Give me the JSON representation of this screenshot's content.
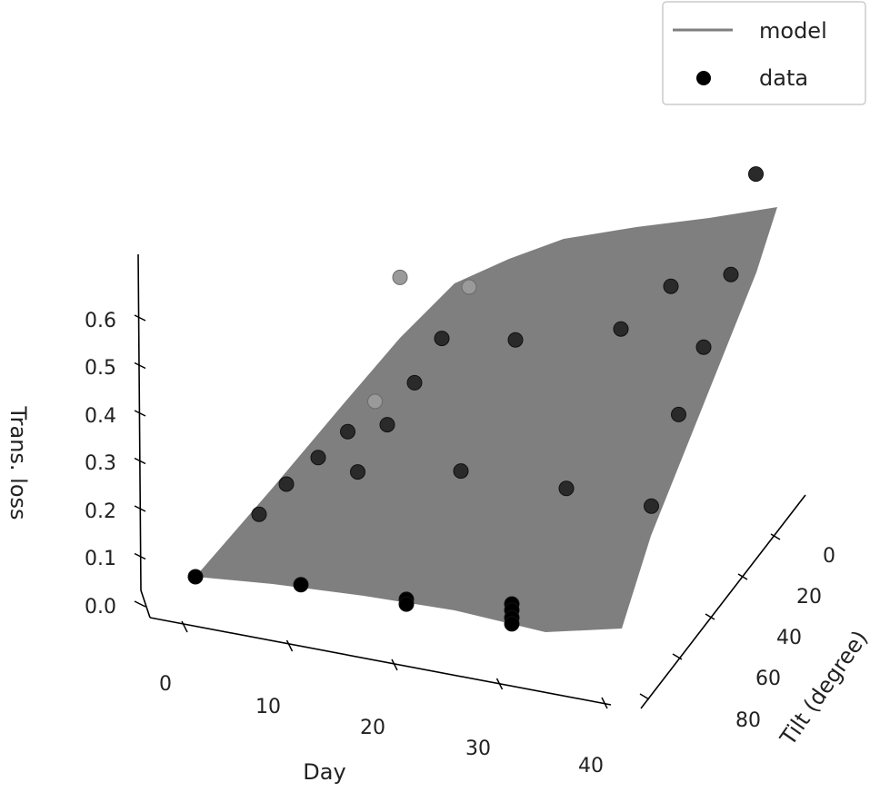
{
  "chart_data": {
    "type": "scatter",
    "subtype": "3d-surface-with-scatter",
    "title": "",
    "xlabel": "Day",
    "ylabel": "Tilt (degree)",
    "zlabel": "Trans. loss",
    "xlim": [
      0,
      40
    ],
    "ylim": [
      0,
      90
    ],
    "zlim": [
      0,
      0.7
    ],
    "x_ticks": [
      "0",
      "10",
      "20",
      "30",
      "40"
    ],
    "y_ticks": [
      "0",
      "20",
      "40",
      "60",
      "80"
    ],
    "z_ticks": [
      "0.0",
      "0.1",
      "0.2",
      "0.3",
      "0.4",
      "0.5",
      "0.6"
    ],
    "legend": {
      "placement": "top-right",
      "entries": [
        {
          "label": "model",
          "kind": "line",
          "color": "#7f7f7f"
        },
        {
          "label": "data",
          "kind": "marker",
          "color": "#000000"
        }
      ]
    },
    "surface_color": "#7f7f7f",
    "points": [
      {
        "day": 0,
        "tilt": 90,
        "loss": 0.05
      },
      {
        "day": 0,
        "tilt": 62,
        "loss": 0.15
      },
      {
        "day": 0,
        "tilt": 50,
        "loss": 0.2
      },
      {
        "day": 0,
        "tilt": 36,
        "loss": 0.24
      },
      {
        "day": 0,
        "tilt": 23,
        "loss": 0.28
      },
      {
        "day": 0,
        "tilt": 11,
        "loss": 0.33
      },
      {
        "day": 0,
        "tilt": 0,
        "loss": 0.58
      },
      {
        "day": 10,
        "tilt": 90,
        "loss": 0.06
      },
      {
        "day": 10,
        "tilt": 65,
        "loss": 0.27
      },
      {
        "day": 10,
        "tilt": 52,
        "loss": 0.355
      },
      {
        "day": 10,
        "tilt": 40,
        "loss": 0.43
      },
      {
        "day": 10,
        "tilt": 28,
        "loss": 0.51
      },
      {
        "day": 10,
        "tilt": 16,
        "loss": 0.605
      },
      {
        "day": 20,
        "tilt": 90,
        "loss": 0.056
      },
      {
        "day": 20,
        "tilt": 90,
        "loss": 0.046
      },
      {
        "day": 20,
        "tilt": 66,
        "loss": 0.3
      },
      {
        "day": 20,
        "tilt": 42,
        "loss": 0.55
      },
      {
        "day": 30,
        "tilt": 90,
        "loss": 0.073
      },
      {
        "day": 30,
        "tilt": 90,
        "loss": 0.06
      },
      {
        "day": 30,
        "tilt": 90,
        "loss": 0.044
      },
      {
        "day": 30,
        "tilt": 90,
        "loss": 0.031
      },
      {
        "day": 30,
        "tilt": 66,
        "loss": 0.29
      },
      {
        "day": 30,
        "tilt": 42,
        "loss": 0.6
      },
      {
        "day": 30,
        "tilt": 20,
        "loss": 0.665
      },
      {
        "day": 40,
        "tilt": 75,
        "loss": 0.29
      },
      {
        "day": 40,
        "tilt": 63,
        "loss": 0.47
      },
      {
        "day": 40,
        "tilt": 52,
        "loss": 0.6
      },
      {
        "day": 40,
        "tilt": 40,
        "loss": 0.74
      },
      {
        "day": 40,
        "tilt": 29,
        "loss": 0.94
      }
    ]
  }
}
